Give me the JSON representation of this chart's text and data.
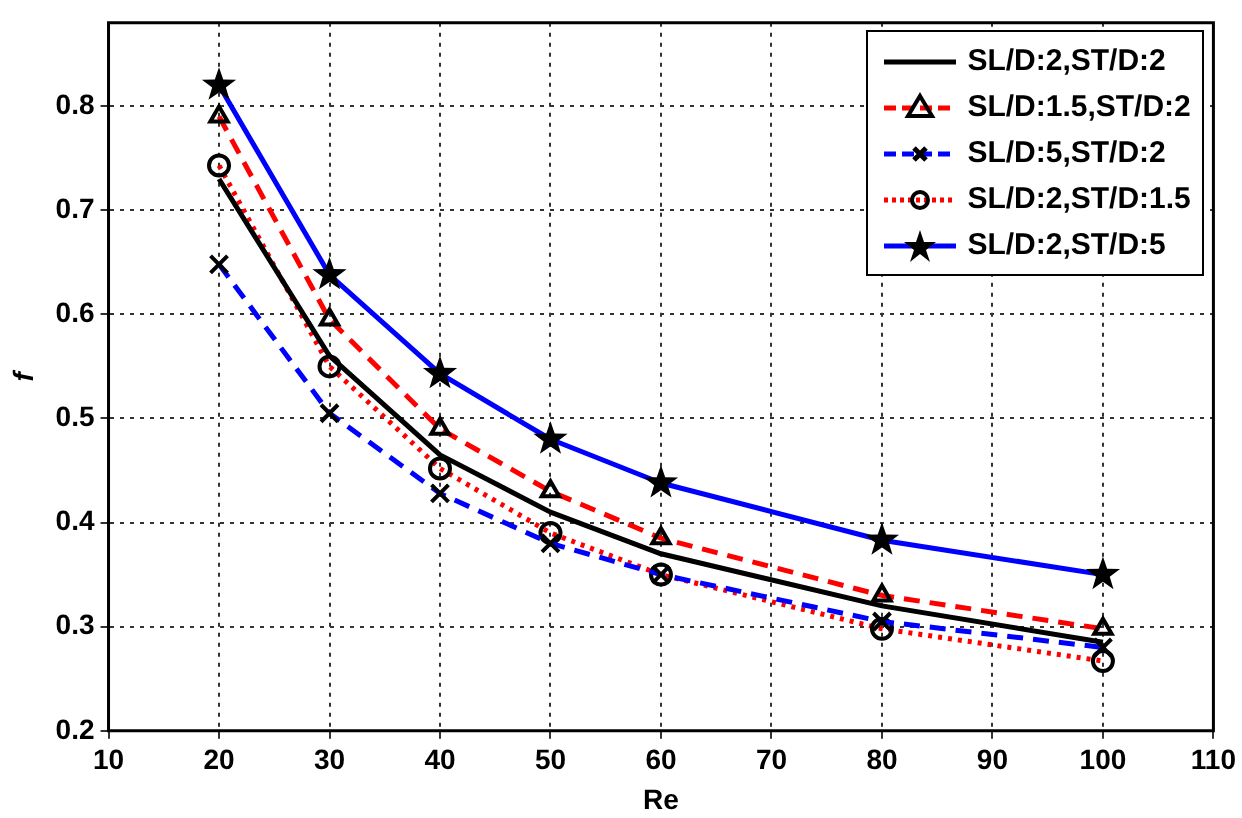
{
  "chart_data": {
    "type": "line",
    "xlabel": "Re",
    "ylabel": "f",
    "x": [
      20,
      30,
      40,
      50,
      60,
      80,
      100
    ],
    "xlim": [
      10,
      110
    ],
    "xticks": [
      10,
      20,
      30,
      40,
      50,
      60,
      70,
      80,
      90,
      100,
      110
    ],
    "ylim": [
      0.2,
      0.88
    ],
    "yticks": [
      0.2,
      0.3,
      0.4,
      0.5,
      0.6,
      0.7,
      0.8
    ],
    "grid": true,
    "legend": "top right",
    "series": [
      {
        "name": "SL/D:2,ST/D:2",
        "color": "#000000",
        "marker": "none",
        "line_style": "solid",
        "values": [
          0.73,
          0.56,
          0.465,
          0.41,
          0.37,
          0.32,
          0.285
        ]
      },
      {
        "name": "SL/D:1.5,ST/D:2",
        "color": "#ff0000",
        "marker": "triangle",
        "line_style": "dashed",
        "values": [
          0.79,
          0.595,
          0.49,
          0.43,
          0.385,
          0.33,
          0.298
        ]
      },
      {
        "name": "SL/D:5,ST/D:2",
        "color": "#0000ff",
        "marker": "cross",
        "line_style": "dashed",
        "values": [
          0.648,
          0.505,
          0.428,
          0.38,
          0.35,
          0.305,
          0.28
        ]
      },
      {
        "name": "SL/D:2,ST/D:1.5",
        "color": "#ff0000",
        "marker": "circle",
        "line_style": "dotted",
        "values": [
          0.743,
          0.55,
          0.452,
          0.39,
          0.35,
          0.298,
          0.267
        ]
      },
      {
        "name": "SL/D:2,ST/D:5",
        "color": "#0000ff",
        "marker": "star",
        "line_style": "solid",
        "values": [
          0.82,
          0.638,
          0.543,
          0.48,
          0.438,
          0.383,
          0.35
        ]
      }
    ]
  }
}
